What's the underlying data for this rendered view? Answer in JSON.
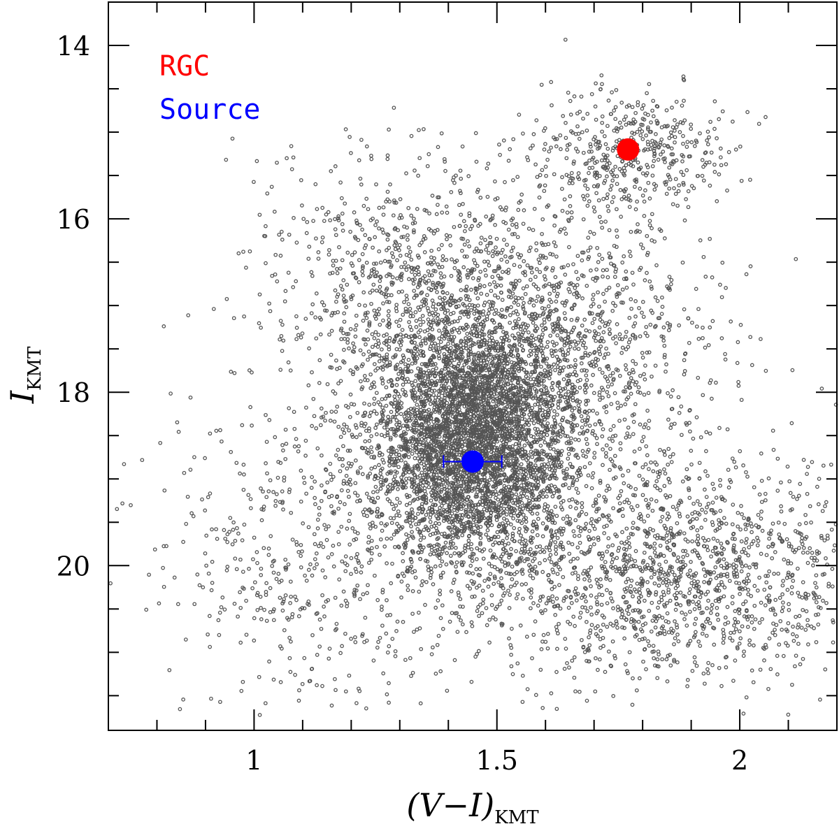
{
  "chart_data": {
    "type": "scatter",
    "xlabel": "(V−I)",
    "xlabel_subscript": "KMT",
    "ylabel": "I",
    "ylabel_subscript": "KMT",
    "xlim": [
      0.7,
      2.2
    ],
    "ylim": [
      21.9,
      13.5
    ],
    "y_inverted": true,
    "x_ticks": [
      {
        "value": 1,
        "label": "1"
      },
      {
        "value": 1.5,
        "label": "1.5"
      },
      {
        "value": 2,
        "label": "2"
      }
    ],
    "y_ticks": [
      {
        "value": 14,
        "label": "14"
      },
      {
        "value": 16,
        "label": "16"
      },
      {
        "value": 18,
        "label": "18"
      },
      {
        "value": 20,
        "label": "20"
      }
    ],
    "grid": false,
    "legend_position": "top-left",
    "field_stars": {
      "color": "#555555",
      "description_of_distribution": "dense bulge field population",
      "approx_count": 9000,
      "components": [
        {
          "weight": 0.5,
          "center": [
            1.45,
            18.55
          ],
          "sd": [
            0.11,
            0.75
          ]
        },
        {
          "weight": 0.18,
          "center": [
            1.85,
            20.1
          ],
          "sd": [
            0.22,
            0.65
          ]
        },
        {
          "weight": 0.14,
          "center": [
            1.62,
            17.4
          ],
          "sd": [
            0.16,
            0.9
          ]
        },
        {
          "weight": 0.07,
          "center": [
            1.3,
            16.7
          ],
          "sd": [
            0.14,
            0.7
          ]
        },
        {
          "weight": 0.05,
          "center": [
            1.78,
            15.2
          ],
          "sd": [
            0.1,
            0.35
          ]
        },
        {
          "weight": 0.06,
          "center": [
            1.1,
            19.8
          ],
          "sd": [
            0.15,
            1.0
          ]
        }
      ]
    },
    "series": [
      {
        "name": "RGC",
        "color": "#ff0000",
        "points": [
          {
            "x": 1.77,
            "y": 15.2
          }
        ]
      },
      {
        "name": "Source",
        "color": "#0000ff",
        "points": [
          {
            "x": 1.45,
            "y": 18.8,
            "xerr": 0.06
          }
        ]
      }
    ]
  }
}
